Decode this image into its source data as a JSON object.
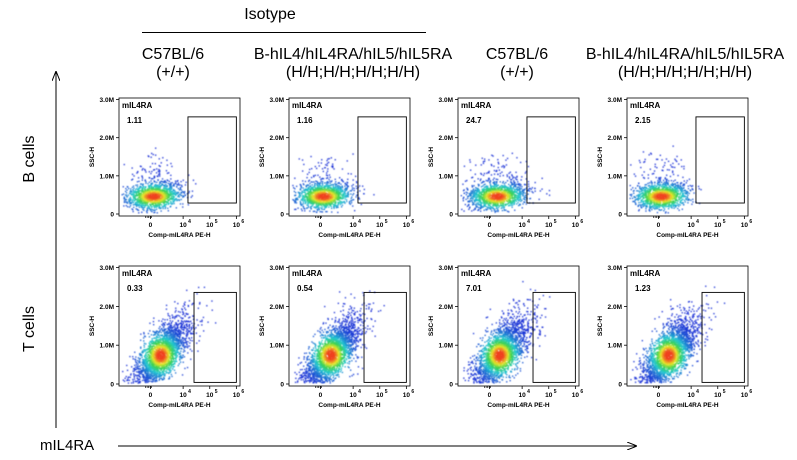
{
  "header": {
    "group_label": "Isotype",
    "columns": [
      {
        "line1": "C57BL/6",
        "line2": "(+/+)"
      },
      {
        "line1": "B-hIL4/hIL4RA/hIL5/hIL5RA",
        "line2": "(H/H;H/H;H/H;H/H)"
      },
      {
        "line1": "C57BL/6",
        "line2": "(+/+)"
      },
      {
        "line1": "B-hIL4/hIL4RA/hIL5/hIL5RA",
        "line2": "(H/H;H/H;H/H;H/H)"
      }
    ]
  },
  "rows": [
    {
      "label": "B cells"
    },
    {
      "label": "T cells"
    }
  ],
  "axis_marker_label": "mIL4RA",
  "chart_data": {
    "type": "scatter",
    "plot_kind": "flow-cytometry-density",
    "xlabel": "Comp-mIL4RA PE-H",
    "ylabel": "SSC-H",
    "x_ticks": [
      "0",
      "10",
      "10",
      "10"
    ],
    "x_tick_exponents": [
      "",
      "4",
      "5",
      "6"
    ],
    "x_ticks_values": [
      0,
      10000,
      100000,
      1000000
    ],
    "y_ticks": [
      "0",
      "1.0M",
      "2.0M",
      "3.0M"
    ],
    "y_ticks_values": [
      0,
      1000000,
      2000000,
      3000000
    ],
    "gate_name": "mIL4RA",
    "panels": [
      {
        "row": "B cells",
        "col": 1,
        "gate_percent": "1.11"
      },
      {
        "row": "B cells",
        "col": 2,
        "gate_percent": "1.16"
      },
      {
        "row": "B cells",
        "col": 3,
        "gate_percent": "24.7"
      },
      {
        "row": "B cells",
        "col": 4,
        "gate_percent": "2.15"
      },
      {
        "row": "T cells",
        "col": 1,
        "gate_percent": "0.33"
      },
      {
        "row": "T cells",
        "col": 2,
        "gate_percent": "0.54"
      },
      {
        "row": "T cells",
        "col": 3,
        "gate_percent": "7.01"
      },
      {
        "row": "T cells",
        "col": 4,
        "gate_percent": "1.23"
      }
    ]
  },
  "colors": {
    "density_low": "#1a2fd6",
    "density_mid": "#22c7d0",
    "density_high": "#e8e82a",
    "density_peak": "#f04020",
    "frame": "#000000"
  }
}
